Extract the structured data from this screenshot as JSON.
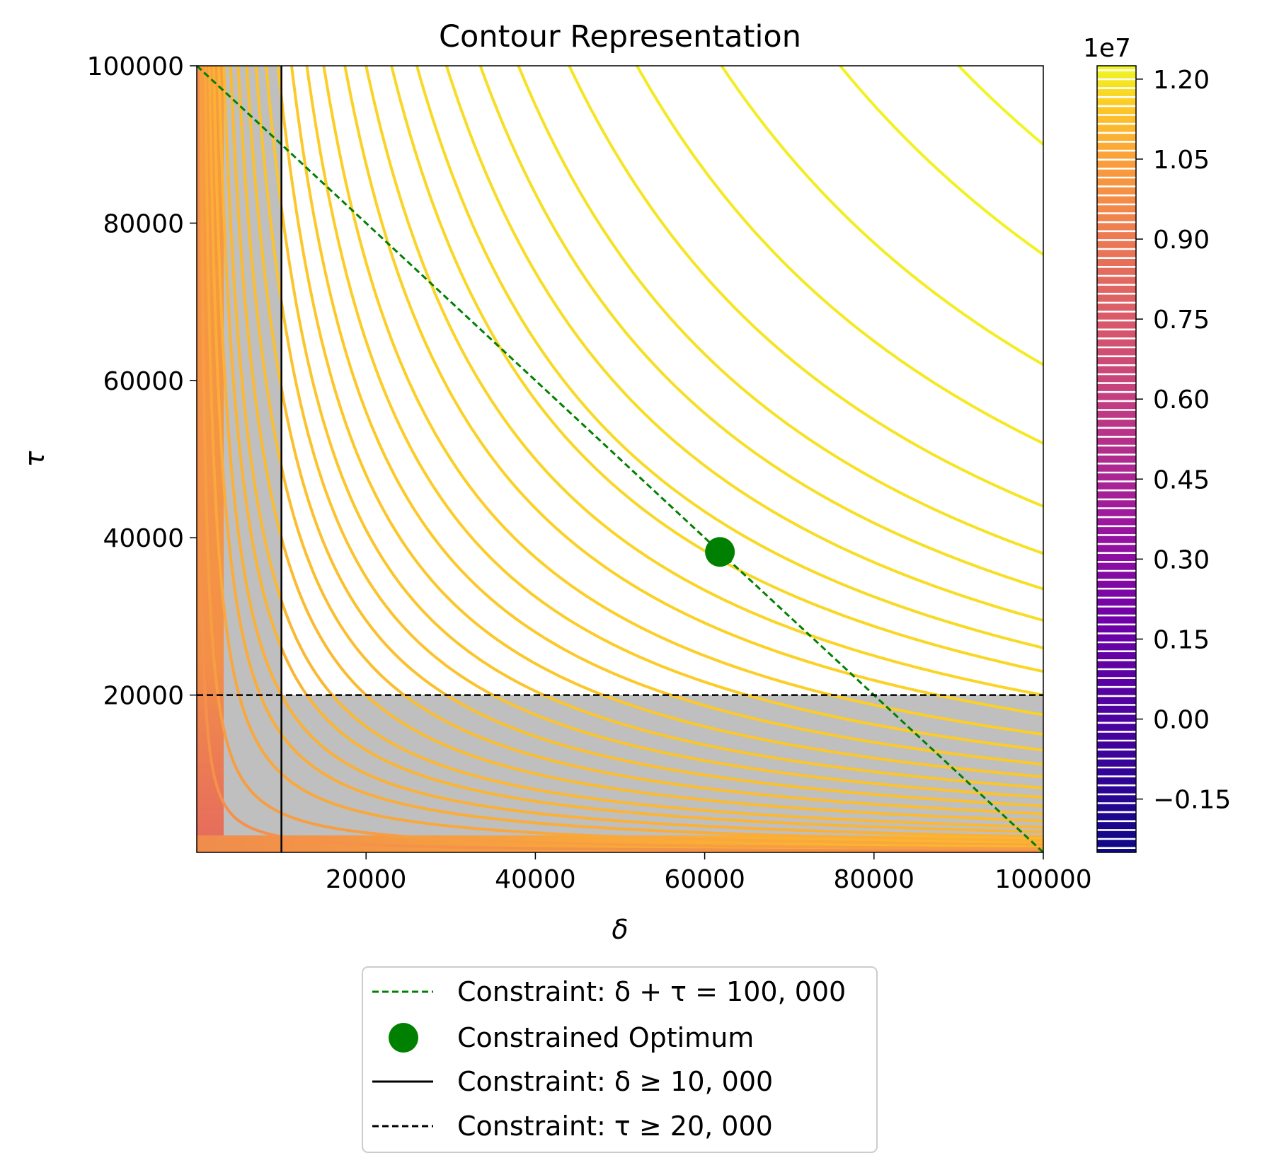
{
  "chart_data": {
    "type": "contour",
    "title": "Contour Representation",
    "xlabel": "δ",
    "ylabel": "τ",
    "xlim": [
      0,
      100000
    ],
    "ylim": [
      0,
      100000
    ],
    "xticks": [
      "20000",
      "40000",
      "60000",
      "80000",
      "100000"
    ],
    "xtick_values": [
      20000,
      40000,
      60000,
      80000,
      100000
    ],
    "yticks": [
      "20000",
      "40000",
      "60000",
      "80000",
      "100000"
    ],
    "ytick_values": [
      20000,
      40000,
      60000,
      80000,
      100000
    ],
    "colormap": "plasma",
    "colorbar": {
      "multiplier": "1e7",
      "range": [
        -0.25,
        1.225
      ],
      "ticks": [
        "−0.15",
        "0.00",
        "0.15",
        "0.30",
        "0.45",
        "0.60",
        "0.75",
        "0.90",
        "1.05",
        "1.20"
      ],
      "tick_values": [
        -0.15,
        0.0,
        0.15,
        0.3,
        0.45,
        0.6,
        0.75,
        0.9,
        1.05,
        1.2
      ]
    },
    "contour_levels_product": [
      20000000,
      50000000,
      100000000,
      150000000,
      200000000,
      260000000,
      320000000,
      400000000,
      490000000,
      590000000,
      700000000,
      820000000,
      960000000,
      1120000000,
      1300000000,
      1500000000,
      1750000000,
      2000000000,
      2300000000,
      2600000000,
      2950000000,
      3350000000,
      3800000000,
      4400000000,
      5200000000,
      6200000000,
      7600000000,
      9000000000
    ],
    "infeasible_regions": {
      "delta_below": 10000,
      "tau_below": 20000,
      "color": "#bfbfbf"
    },
    "constraint_line": {
      "from": [
        0,
        100000
      ],
      "to": [
        100000,
        0
      ]
    },
    "optimum": {
      "x": 61800,
      "y": 38200
    },
    "legend": [
      {
        "label": "Constraint: δ + τ = 100, 000",
        "style": "green-dashed"
      },
      {
        "label": "Constrained Optimum",
        "style": "green-marker"
      },
      {
        "label": "Constraint: δ ≥ 10, 000",
        "style": "black-solid"
      },
      {
        "label": "Constraint: τ ≥ 20, 000",
        "style": "black-dashed"
      }
    ],
    "legend_position": "below"
  },
  "colors": {
    "constraint_green": "#008000",
    "constraint_black": "#000000",
    "shading": "#bfbfbf"
  }
}
